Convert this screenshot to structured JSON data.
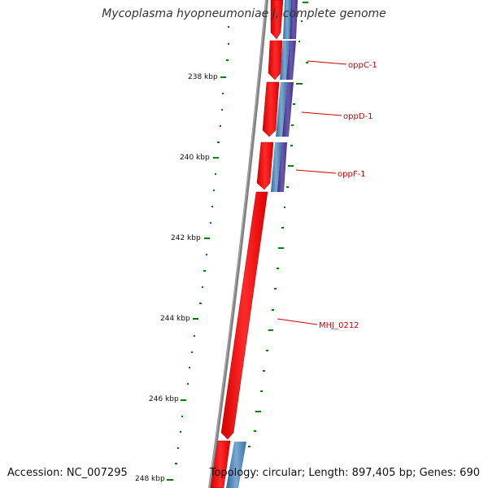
{
  "title": "Mycoplasma hyopneumoniae J, complete genome",
  "footer": {
    "accession": "Accession: NC_007295",
    "summary": "Topology: circular; Length: 897,405 bp; Genes: 690"
  },
  "scale_labels": [
    "238 kbp",
    "240 kbp",
    "242 kbp",
    "244 kbp",
    "246 kbp",
    "248 kbp"
  ],
  "gene_labels": [
    "oppC-1",
    "oppD-1",
    "oppF-1",
    "MHJ_0212"
  ],
  "colors": {
    "backbone": "#808080",
    "cds": "#ff0000",
    "blast_light": "#4a7fb0",
    "blast_dark": "#4a3d8f",
    "gc_tick": "#008000",
    "label": "#cc0000"
  }
}
